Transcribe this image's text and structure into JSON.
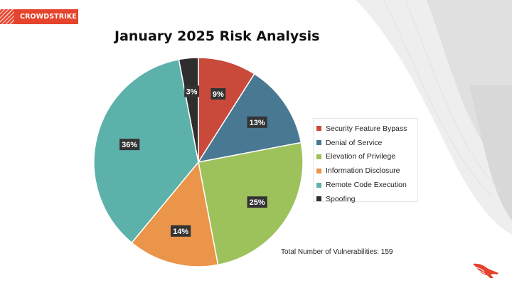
{
  "brand": {
    "logo_text": "CROWDSTRIKE",
    "accent_color": "#e5432b",
    "icon": "falcon-icon"
  },
  "chart_data": {
    "type": "pie",
    "title": "January 2025 Risk Analysis",
    "legend_placement": "right",
    "slices": [
      {
        "label": "Security Feature Bypass",
        "percent": 9,
        "value_label": "9%",
        "color": "#c94a3b"
      },
      {
        "label": "Denial of Service",
        "percent": 13,
        "value_label": "13%",
        "color": "#497892"
      },
      {
        "label": "Elevation of Privilege",
        "percent": 25,
        "value_label": "25%",
        "color": "#9ec25b"
      },
      {
        "label": "Information Disclosure",
        "percent": 14,
        "value_label": "14%",
        "color": "#ea9549"
      },
      {
        "label": "Remote Code Execution",
        "percent": 36,
        "value_label": "36%",
        "color": "#5db1ab"
      },
      {
        "label": "Spoofing",
        "percent": 3,
        "value_label": "3%",
        "color": "#2e2e2e"
      }
    ],
    "footnote": "Total Number of Vulnerabilities: 159"
  }
}
